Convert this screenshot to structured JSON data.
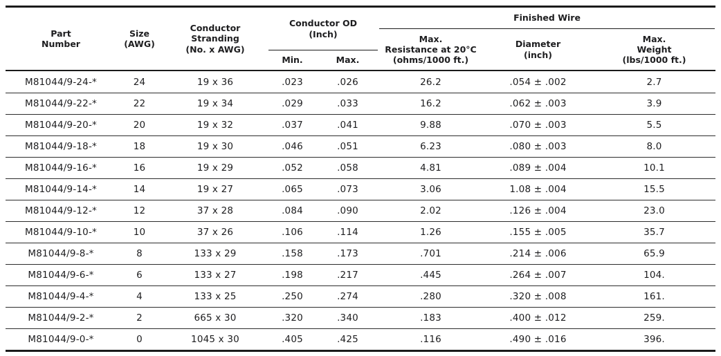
{
  "colors": {
    "text": "#1d1d1f",
    "line": "#1a1a1a",
    "background": "#ffffff"
  },
  "table": {
    "header": {
      "part_number": "Part\nNumber",
      "size_awg": "Size\n(AWG)",
      "conductor_stranding": "Conductor\nStranding\n(No. x AWG)",
      "conductor_od_group": "Conductor OD\n(Inch)",
      "od_min": "Min.",
      "od_max": "Max.",
      "finished_wire_group": "Finished Wire",
      "max_resistance": "Max.\nResistance at 20°C\n(ohms/1000 ft.)",
      "diameter": "Diameter\n(inch)",
      "max_weight": "Max.\nWeight\n(lbs/1000 ft.)"
    },
    "rows": [
      [
        "M81044/9-24-*",
        "24",
        "19 x 36",
        ".023",
        ".026",
        "26.2",
        ".054 ± .002",
        "2.7"
      ],
      [
        "M81044/9-22-*",
        "22",
        "19 x 34",
        ".029",
        ".033",
        "16.2",
        ".062 ± .003",
        "3.9"
      ],
      [
        "M81044/9-20-*",
        "20",
        "19 x 32",
        ".037",
        ".041",
        "9.88",
        ".070 ± .003",
        "5.5"
      ],
      [
        "M81044/9-18-*",
        "18",
        "19 x 30",
        ".046",
        ".051",
        "6.23",
        ".080 ± .003",
        "8.0"
      ],
      [
        "M81044/9-16-*",
        "16",
        "19 x 29",
        ".052",
        ".058",
        "4.81",
        ".089 ± .004",
        "10.1"
      ],
      [
        "M81044/9-14-*",
        "14",
        "19 x 27",
        ".065",
        ".073",
        "3.06",
        "1.08 ± .004",
        "15.5"
      ],
      [
        "M81044/9-12-*",
        "12",
        "37 x 28",
        ".084",
        ".090",
        "2.02",
        ".126 ± .004",
        "23.0"
      ],
      [
        "M81044/9-10-*",
        "10",
        "37 x 26",
        ".106",
        ".114",
        "1.26",
        ".155 ± .005",
        "35.7"
      ],
      [
        "M81044/9-8-*",
        "8",
        "133 x 29",
        ".158",
        ".173",
        ".701",
        ".214 ± .006",
        "65.9"
      ],
      [
        "M81044/9-6-*",
        "6",
        "133 x 27",
        ".198",
        ".217",
        ".445",
        ".264 ± .007",
        "104."
      ],
      [
        "M81044/9-4-*",
        "4",
        "133 x 25",
        ".250",
        ".274",
        ".280",
        ".320 ± .008",
        "161."
      ],
      [
        "M81044/9-2-*",
        "2",
        "665 x 30",
        ".320",
        ".340",
        ".183",
        ".400 ± .012",
        "259."
      ],
      [
        "M81044/9-0-*",
        "0",
        "1045 x 30",
        ".405",
        ".425",
        ".116",
        ".490 ± .016",
        "396."
      ]
    ]
  }
}
